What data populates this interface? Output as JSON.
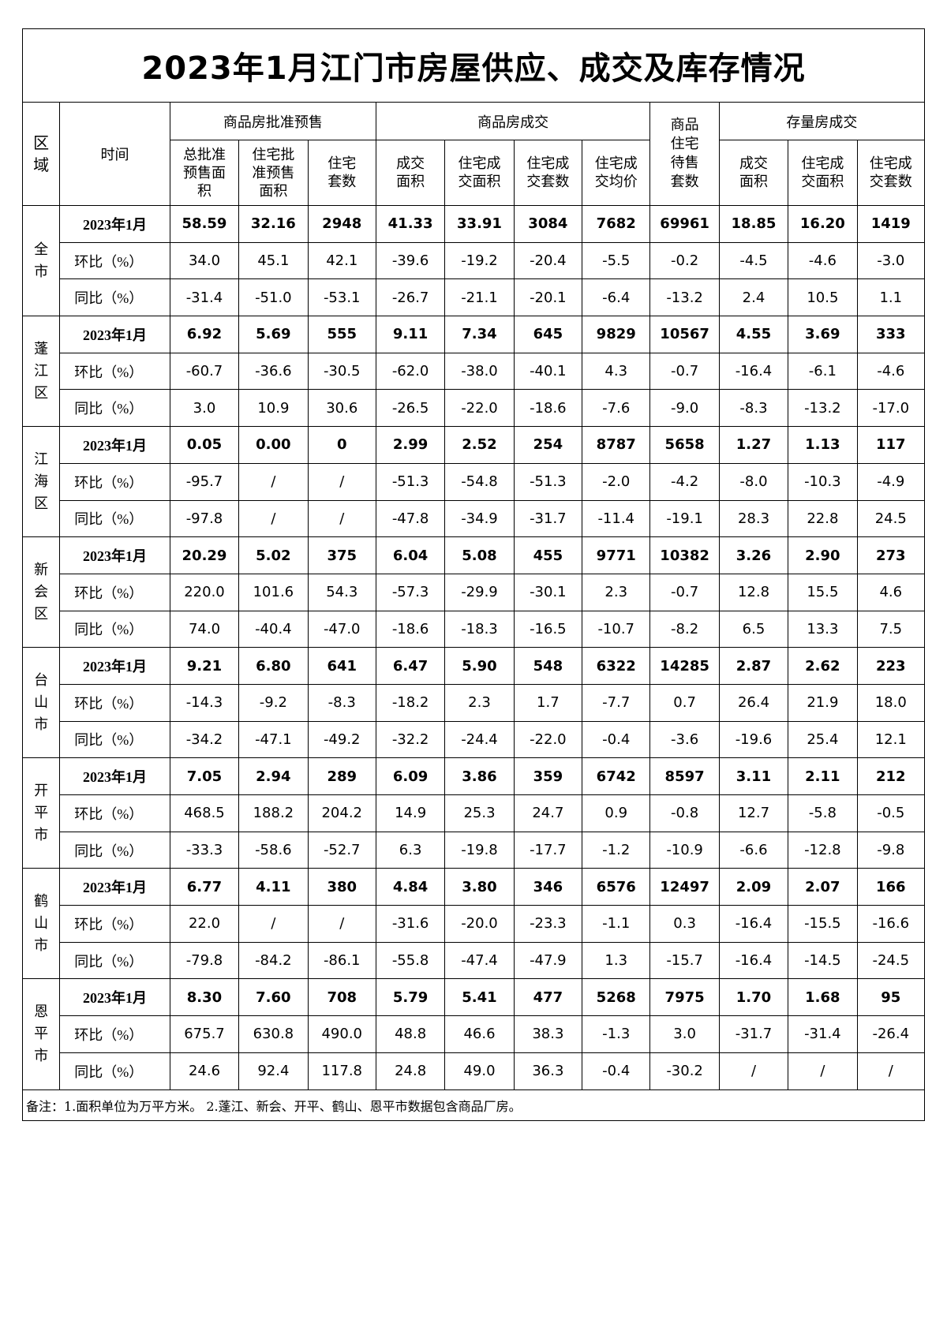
{
  "title": "2023年1月江门市房屋供应、成交及库存情况",
  "headers": {
    "region": "区域",
    "time": "时间",
    "group_presale": "商品房批准预售",
    "group_deal": "商品房成交",
    "unsold": "商品住宅待售套数",
    "group_stock": "存量房成交",
    "cols": [
      "总批准预售面积",
      "住宅批准预售面积",
      "住宅套数",
      "成交面积",
      "住宅成交面积",
      "住宅成交套数",
      "住宅成交均价",
      "成交面积",
      "住宅成交面积",
      "住宅成交套数"
    ]
  },
  "row_labels": [
    "2023年1月",
    "环比（%）",
    "同比（%）"
  ],
  "regions": [
    {
      "name": "全市",
      "rows": [
        [
          "58.59",
          "32.16",
          "2948",
          "41.33",
          "33.91",
          "3084",
          "7682",
          "69961",
          "18.85",
          "16.20",
          "1419"
        ],
        [
          "34.0",
          "45.1",
          "42.1",
          "-39.6",
          "-19.2",
          "-20.4",
          "-5.5",
          "-0.2",
          "-4.5",
          "-4.6",
          "-3.0"
        ],
        [
          "-31.4",
          "-51.0",
          "-53.1",
          "-26.7",
          "-21.1",
          "-20.1",
          "-6.4",
          "-13.2",
          "2.4",
          "10.5",
          "1.1"
        ]
      ]
    },
    {
      "name": "蓬江区",
      "rows": [
        [
          "6.92",
          "5.69",
          "555",
          "9.11",
          "7.34",
          "645",
          "9829",
          "10567",
          "4.55",
          "3.69",
          "333"
        ],
        [
          "-60.7",
          "-36.6",
          "-30.5",
          "-62.0",
          "-38.0",
          "-40.1",
          "4.3",
          "-0.7",
          "-16.4",
          "-6.1",
          "-4.6"
        ],
        [
          "3.0",
          "10.9",
          "30.6",
          "-26.5",
          "-22.0",
          "-18.6",
          "-7.6",
          "-9.0",
          "-8.3",
          "-13.2",
          "-17.0"
        ]
      ]
    },
    {
      "name": "江海区",
      "rows": [
        [
          "0.05",
          "0.00",
          "0",
          "2.99",
          "2.52",
          "254",
          "8787",
          "5658",
          "1.27",
          "1.13",
          "117"
        ],
        [
          "-95.7",
          "/",
          "/",
          "-51.3",
          "-54.8",
          "-51.3",
          "-2.0",
          "-4.2",
          "-8.0",
          "-10.3",
          "-4.9"
        ],
        [
          "-97.8",
          "/",
          "/",
          "-47.8",
          "-34.9",
          "-31.7",
          "-11.4",
          "-19.1",
          "28.3",
          "22.8",
          "24.5"
        ]
      ]
    },
    {
      "name": "新会区",
      "rows": [
        [
          "20.29",
          "5.02",
          "375",
          "6.04",
          "5.08",
          "455",
          "9771",
          "10382",
          "3.26",
          "2.90",
          "273"
        ],
        [
          "220.0",
          "101.6",
          "54.3",
          "-57.3",
          "-29.9",
          "-30.1",
          "2.3",
          "-0.7",
          "12.8",
          "15.5",
          "4.6"
        ],
        [
          "74.0",
          "-40.4",
          "-47.0",
          "-18.6",
          "-18.3",
          "-16.5",
          "-10.7",
          "-8.2",
          "6.5",
          "13.3",
          "7.5"
        ]
      ]
    },
    {
      "name": "台山市",
      "rows": [
        [
          "9.21",
          "6.80",
          "641",
          "6.47",
          "5.90",
          "548",
          "6322",
          "14285",
          "2.87",
          "2.62",
          "223"
        ],
        [
          "-14.3",
          "-9.2",
          "-8.3",
          "-18.2",
          "2.3",
          "1.7",
          "-7.7",
          "0.7",
          "26.4",
          "21.9",
          "18.0"
        ],
        [
          "-34.2",
          "-47.1",
          "-49.2",
          "-32.2",
          "-24.4",
          "-22.0",
          "-0.4",
          "-3.6",
          "-19.6",
          "25.4",
          "12.1"
        ]
      ]
    },
    {
      "name": "开平市",
      "rows": [
        [
          "7.05",
          "2.94",
          "289",
          "6.09",
          "3.86",
          "359",
          "6742",
          "8597",
          "3.11",
          "2.11",
          "212"
        ],
        [
          "468.5",
          "188.2",
          "204.2",
          "14.9",
          "25.3",
          "24.7",
          "0.9",
          "-0.8",
          "12.7",
          "-5.8",
          "-0.5"
        ],
        [
          "-33.3",
          "-58.6",
          "-52.7",
          "6.3",
          "-19.8",
          "-17.7",
          "-1.2",
          "-10.9",
          "-6.6",
          "-12.8",
          "-9.8"
        ]
      ]
    },
    {
      "name": "鹤山市",
      "rows": [
        [
          "6.77",
          "4.11",
          "380",
          "4.84",
          "3.80",
          "346",
          "6576",
          "12497",
          "2.09",
          "2.07",
          "166"
        ],
        [
          "22.0",
          "/",
          "/",
          "-31.6",
          "-20.0",
          "-23.3",
          "-1.1",
          "0.3",
          "-16.4",
          "-15.5",
          "-16.6"
        ],
        [
          "-79.8",
          "-84.2",
          "-86.1",
          "-55.8",
          "-47.4",
          "-47.9",
          "1.3",
          "-15.7",
          "-16.4",
          "-14.5",
          "-24.5"
        ]
      ]
    },
    {
      "name": "恩平市",
      "rows": [
        [
          "8.30",
          "7.60",
          "708",
          "5.79",
          "5.41",
          "477",
          "5268",
          "7975",
          "1.70",
          "1.68",
          "95"
        ],
        [
          "675.7",
          "630.8",
          "490.0",
          "48.8",
          "46.6",
          "38.3",
          "-1.3",
          "3.0",
          "-31.7",
          "-31.4",
          "-26.4"
        ],
        [
          "24.6",
          "92.4",
          "117.8",
          "24.8",
          "49.0",
          "36.3",
          "-0.4",
          "-30.2",
          "/",
          "/",
          "/"
        ]
      ]
    }
  ],
  "note": "备注：1.面积单位为万平方米。 2.蓬江、新会、开平、鹤山、恩平市数据包含商品厂房。"
}
